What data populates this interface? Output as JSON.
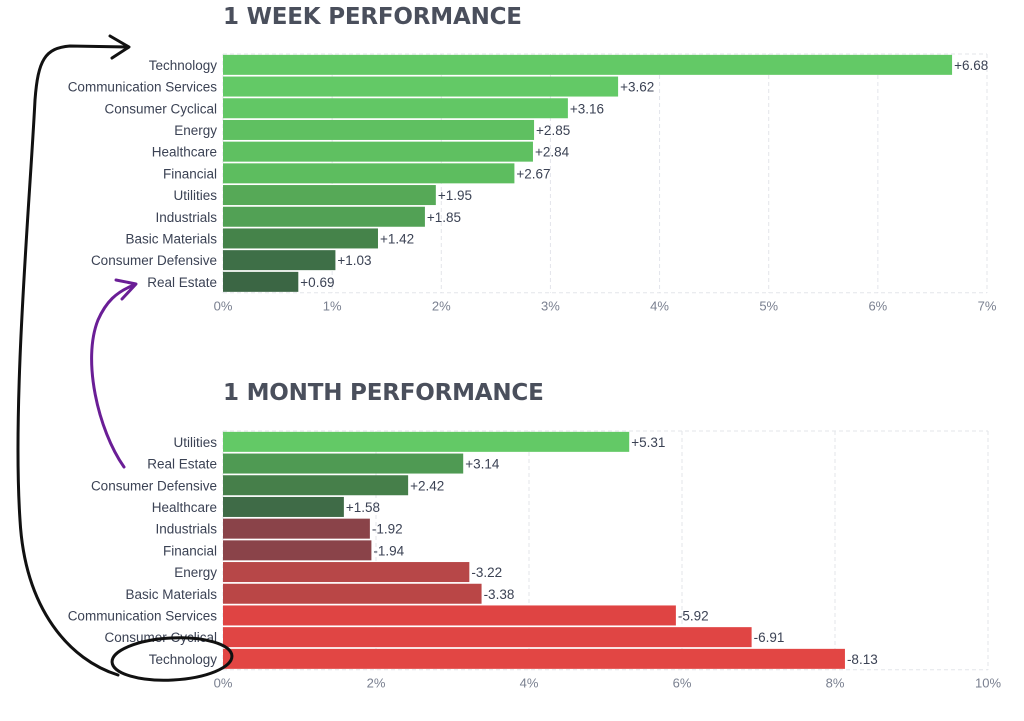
{
  "chart_data": [
    {
      "type": "bar",
      "orientation": "horizontal",
      "title": "1 WEEK PERFORMANCE",
      "categories": [
        "Technology",
        "Communication Services",
        "Consumer Cyclical",
        "Energy",
        "Healthcare",
        "Financial",
        "Utilities",
        "Industrials",
        "Basic Materials",
        "Consumer Defensive",
        "Real Estate"
      ],
      "values": [
        6.68,
        3.62,
        3.16,
        2.85,
        2.84,
        2.67,
        1.95,
        1.85,
        1.42,
        1.03,
        0.69
      ],
      "value_labels": [
        "+6.68",
        "+3.62",
        "+3.16",
        "+2.85",
        "+2.84",
        "+2.67",
        "+1.95",
        "+1.85",
        "+1.42",
        "+1.03",
        "+0.69"
      ],
      "bar_colors": [
        "#63c966",
        "#63c966",
        "#62c765",
        "#5fc061",
        "#5fc061",
        "#5dbd5f",
        "#56a957",
        "#52a155",
        "#45834a",
        "#3e6f47",
        "#3b6644"
      ],
      "xticks": [
        "0%",
        "1%",
        "2%",
        "3%",
        "4%",
        "5%",
        "6%",
        "7%"
      ],
      "xlim": [
        0,
        7
      ],
      "grid": true
    },
    {
      "type": "bar",
      "orientation": "horizontal",
      "title": "1 MONTH PERFORMANCE",
      "categories": [
        "Utilities",
        "Real Estate",
        "Consumer Defensive",
        "Healthcare",
        "Industrials",
        "Financial",
        "Energy",
        "Basic Materials",
        "Communication Services",
        "Consumer Cyclical",
        "Technology"
      ],
      "values": [
        5.31,
        3.14,
        2.42,
        1.58,
        -1.92,
        -1.94,
        -3.22,
        -3.38,
        -5.92,
        -6.91,
        -8.13
      ],
      "value_labels": [
        "+5.31",
        "+3.14",
        "+2.42",
        "+1.58",
        "-1.92",
        "-1.94",
        "-3.22",
        "-3.38",
        "-5.92",
        "-6.91",
        "-8.13"
      ],
      "bar_colors": [
        "#63c966",
        "#4f9a53",
        "#467f4a",
        "#3f6b47",
        "#8a4349",
        "#8a4349",
        "#b74748",
        "#ba4646",
        "#df4443",
        "#e04544",
        "#e24644"
      ],
      "xticks": [
        "0%",
        "2%",
        "4%",
        "6%",
        "8%",
        "10%"
      ],
      "xlim": [
        0,
        10
      ],
      "grid": true
    }
  ]
}
